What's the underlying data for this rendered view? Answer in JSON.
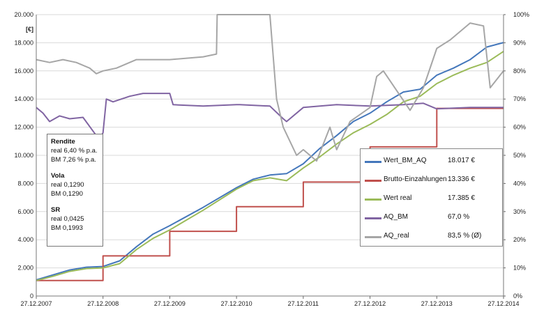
{
  "chart_data": {
    "type": "line",
    "ylabel": "[€]",
    "ylim": [
      0,
      20000
    ],
    "y2lim": [
      0,
      1
    ],
    "y_ticks": [
      "0",
      "2.000",
      "4.000",
      "6.000",
      "8.000",
      "10.000",
      "12.000",
      "14.000",
      "16.000",
      "18.000",
      "20.000"
    ],
    "y2_ticks": [
      "0%",
      "10%",
      "20%",
      "30%",
      "40%",
      "50%",
      "60%",
      "70%",
      "80%",
      "90%",
      "100%"
    ],
    "x_ticks": [
      "27.12.2007",
      "27.12.2008",
      "27.12.2009",
      "27.12.2010",
      "27.12.2011",
      "27.12.2012",
      "27.12.2013",
      "27.12.2014"
    ],
    "grid": true,
    "legend_position": "bottom-right",
    "series": [
      {
        "name": "Wert_BM_AQ",
        "axis": "left",
        "color": "#4477bb",
        "value_label": "18.017 €",
        "x": [
          0,
          0.25,
          0.5,
          0.75,
          1.0,
          1.25,
          1.5,
          1.75,
          2.0,
          2.5,
          3.0,
          3.25,
          3.5,
          3.75,
          4.0,
          4.25,
          4.5,
          4.75,
          5.0,
          5.25,
          5.5,
          5.75,
          6.0,
          6.25,
          6.5,
          6.75,
          7.0
        ],
        "y": [
          1150,
          1500,
          1850,
          2050,
          2100,
          2500,
          3500,
          4400,
          5000,
          6300,
          7700,
          8300,
          8600,
          8700,
          9400,
          10500,
          11400,
          12400,
          13000,
          13800,
          14500,
          14700,
          15700,
          16200,
          16800,
          17700,
          18017
        ]
      },
      {
        "name": "Brutto-Einzahlungen",
        "axis": "left",
        "color": "#c0504d",
        "value_label": "13.336 €",
        "x": [
          0,
          1,
          2,
          3,
          4,
          5,
          6,
          7
        ],
        "y": [
          1100,
          2850,
          4600,
          6350,
          8100,
          10600,
          13336,
          13336
        ]
      },
      {
        "name": "Wert real",
        "axis": "left",
        "color": "#9bbb59",
        "value_label": "17.385 €",
        "x": [
          0,
          0.25,
          0.5,
          0.75,
          1.0,
          1.25,
          1.5,
          1.75,
          2.0,
          2.5,
          3.0,
          3.25,
          3.5,
          3.75,
          4.0,
          4.25,
          4.5,
          4.75,
          5.0,
          5.25,
          5.5,
          5.75,
          6.0,
          6.25,
          6.5,
          6.75,
          7.0
        ],
        "y": [
          1100,
          1400,
          1750,
          1950,
          2000,
          2300,
          3300,
          4100,
          4700,
          6100,
          7600,
          8200,
          8400,
          8200,
          9100,
          9900,
          10800,
          11600,
          12200,
          12900,
          13800,
          14200,
          15100,
          15700,
          16200,
          16600,
          17385
        ]
      },
      {
        "name": "AQ_BM",
        "axis": "right",
        "color": "#8064a2",
        "value_label": "67,0 %",
        "x": [
          0,
          0.1,
          0.2,
          0.35,
          0.5,
          0.7,
          0.9,
          0.95,
          1.0,
          1.05,
          1.15,
          1.4,
          1.6,
          2.0,
          2.05,
          2.5,
          3.0,
          3.05,
          3.5,
          3.7,
          3.75,
          4.0,
          4.5,
          5.0,
          5.5,
          5.8,
          6.0,
          6.5,
          7.0
        ],
        "y": [
          0.67,
          0.65,
          0.62,
          0.64,
          0.63,
          0.635,
          0.57,
          0.56,
          0.58,
          0.7,
          0.69,
          0.71,
          0.72,
          0.72,
          0.68,
          0.675,
          0.68,
          0.68,
          0.675,
          0.63,
          0.62,
          0.67,
          0.68,
          0.675,
          0.68,
          0.685,
          0.665,
          0.67,
          0.67
        ]
      },
      {
        "name": "AQ_real",
        "axis": "right",
        "color": "#a6a6a6",
        "value_label": "83,5 % (Ø)",
        "x": [
          0,
          0.2,
          0.4,
          0.6,
          0.8,
          0.9,
          1.0,
          1.2,
          1.5,
          2.0,
          2.5,
          2.7,
          2.71,
          3.0,
          3.5,
          3.6,
          3.7,
          3.9,
          4.0,
          4.2,
          4.4,
          4.5,
          4.7,
          5.0,
          5.1,
          5.2,
          5.6,
          5.8,
          6.0,
          6.2,
          6.5,
          6.7,
          6.8,
          7.0
        ],
        "y": [
          0.84,
          0.83,
          0.84,
          0.83,
          0.81,
          0.79,
          0.8,
          0.81,
          0.84,
          0.84,
          0.85,
          0.86,
          1.0,
          1.0,
          1.0,
          0.7,
          0.6,
          0.5,
          0.52,
          0.48,
          0.6,
          0.52,
          0.62,
          0.67,
          0.78,
          0.8,
          0.66,
          0.74,
          0.88,
          0.91,
          0.97,
          0.96,
          0.74,
          0.8
        ]
      }
    ]
  },
  "stats": {
    "rendite_head": "Rendite",
    "rendite_real": "real 6,40 % p.a.",
    "rendite_bm": "BM 7,26 % p.a.",
    "vola_head": "Vola",
    "vola_real": "real 0,1290",
    "vola_bm": "BM 0,1290",
    "sr_head": "SR",
    "sr_real": "real 0,0425",
    "sr_bm": "BM 0,1993"
  }
}
